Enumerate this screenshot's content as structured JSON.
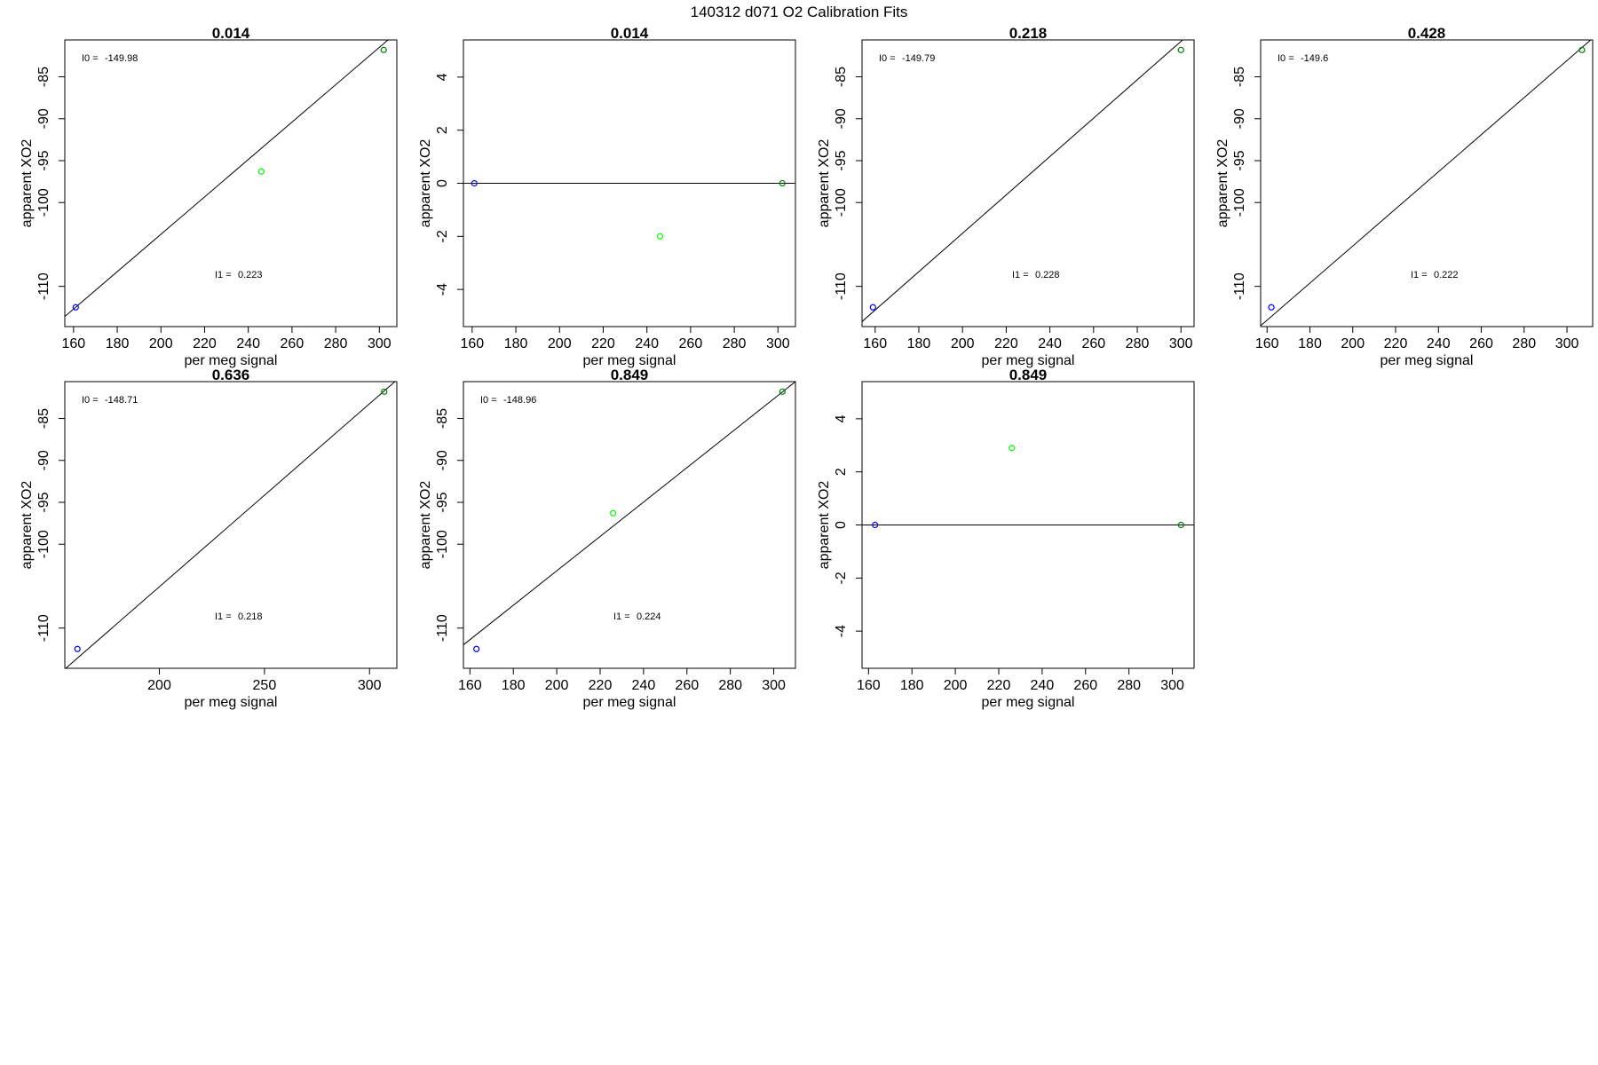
{
  "figure": {
    "title": "140312   d071   O2 Calibration Fits"
  },
  "chart_data": [
    {
      "type": "scatter",
      "title": "0.014",
      "xlabel": "per meg signal",
      "ylabel": "apparent XO2",
      "xlim": [
        156,
        308
      ],
      "ylim": [
        -114.8,
        -80.6
      ],
      "xticks": [
        "160",
        "180",
        "200",
        "220",
        "240",
        "260",
        "280",
        "300"
      ],
      "yticks": [
        "-110",
        "-100",
        "-95",
        "-90",
        "-85"
      ],
      "fit_line": [
        [
          156,
          -113.6
        ],
        [
          308,
          -79.7
        ]
      ],
      "points": [
        {
          "x": 161,
          "y": -112.5,
          "color": "#0000ff"
        },
        {
          "x": 246,
          "y": -96.3,
          "color": "#00ff00"
        },
        {
          "x": 302,
          "y": -81.8,
          "color": "#008000"
        }
      ],
      "annotations": [
        {
          "label": "I0 =",
          "value": "-149.98"
        },
        {
          "label": "I1 =",
          "value": "0.223"
        }
      ]
    },
    {
      "type": "scatter",
      "title": "0.014",
      "xlabel": "per meg signal",
      "ylabel": "apparent XO2",
      "xlim": [
        156,
        308
      ],
      "ylim": [
        -5.4,
        5.4
      ],
      "xticks": [
        "160",
        "180",
        "200",
        "220",
        "240",
        "260",
        "280",
        "300"
      ],
      "yticks": [
        "-4",
        "-2",
        "0",
        "2",
        "4"
      ],
      "fit_line": [
        [
          156,
          0
        ],
        [
          308,
          0
        ]
      ],
      "points": [
        {
          "x": 161,
          "y": 0,
          "color": "#0000ff"
        },
        {
          "x": 246,
          "y": -2,
          "color": "#00ff00"
        },
        {
          "x": 302,
          "y": 0,
          "color": "#008000"
        }
      ],
      "annotations": []
    },
    {
      "type": "scatter",
      "title": "0.218",
      "xlabel": "per meg signal",
      "ylabel": "apparent XO2",
      "xlim": [
        154,
        306
      ],
      "ylim": [
        -114.8,
        -80.6
      ],
      "xticks": [
        "160",
        "180",
        "200",
        "220",
        "240",
        "260",
        "280",
        "300"
      ],
      "yticks": [
        "-110",
        "-100",
        "-95",
        "-90",
        "-85"
      ],
      "fit_line": [
        [
          154,
          -114.2
        ],
        [
          306,
          -79.4
        ]
      ],
      "points": [
        {
          "x": 159,
          "y": -112.5,
          "color": "#0000ff"
        },
        {
          "x": 300,
          "y": -81.8,
          "color": "#008000"
        }
      ],
      "annotations": [
        {
          "label": "I0 =",
          "value": "-149.79"
        },
        {
          "label": "I1 =",
          "value": "0.228"
        }
      ]
    },
    {
      "type": "scatter",
      "title": "0.428",
      "xlabel": "per meg signal",
      "ylabel": "apparent XO2",
      "xlim": [
        157,
        312
      ],
      "ylim": [
        -114.8,
        -80.6
      ],
      "xticks": [
        "160",
        "180",
        "200",
        "220",
        "240",
        "260",
        "280",
        "300"
      ],
      "yticks": [
        "-110",
        "-100",
        "-95",
        "-90",
        "-85"
      ],
      "fit_line": [
        [
          157,
          -114.7
        ],
        [
          312,
          -80.4
        ]
      ],
      "points": [
        {
          "x": 162,
          "y": -112.5,
          "color": "#0000ff"
        },
        {
          "x": 307,
          "y": -81.8,
          "color": "#008000"
        }
      ],
      "annotations": [
        {
          "label": "I0 =",
          "value": "-149.6"
        },
        {
          "label": "I1 =",
          "value": "0.222"
        }
      ]
    },
    {
      "type": "scatter",
      "title": "0.636",
      "xlabel": "per meg signal",
      "ylabel": "apparent XO2",
      "xlim": [
        155,
        313
      ],
      "ylim": [
        -114.8,
        -80.6
      ],
      "xticks": [
        "200",
        "250",
        "300"
      ],
      "yticks": [
        "-110",
        "-100",
        "-95",
        "-90",
        "-85"
      ],
      "fit_line": [
        [
          155,
          -114.9
        ],
        [
          313,
          -80.4
        ]
      ],
      "points": [
        {
          "x": 161,
          "y": -112.5,
          "color": "#0000ff"
        },
        {
          "x": 307,
          "y": -81.8,
          "color": "#008000"
        }
      ],
      "annotations": [
        {
          "label": "I0 =",
          "value": "-148.71"
        },
        {
          "label": "I1 =",
          "value": "0.218"
        }
      ]
    },
    {
      "type": "scatter",
      "title": "0.849",
      "xlabel": "per meg signal",
      "ylabel": "apparent XO2",
      "xlim": [
        157,
        310
      ],
      "ylim": [
        -114.8,
        -80.6
      ],
      "xticks": [
        "160",
        "180",
        "200",
        "220",
        "240",
        "260",
        "280",
        "300"
      ],
      "yticks": [
        "-110",
        "-100",
        "-95",
        "-90",
        "-85"
      ],
      "fit_line": [
        [
          157,
          -112.0
        ],
        [
          310,
          -80.6
        ]
      ],
      "points": [
        {
          "x": 163,
          "y": -112.5,
          "color": "#0000ff"
        },
        {
          "x": 226,
          "y": -96.3,
          "color": "#00ff00"
        },
        {
          "x": 304,
          "y": -81.8,
          "color": "#008000"
        }
      ],
      "annotations": [
        {
          "label": "I0 =",
          "value": "-148.96"
        },
        {
          "label": "I1 =",
          "value": "0.224"
        }
      ]
    },
    {
      "type": "scatter",
      "title": "0.849",
      "xlabel": "per meg signal",
      "ylabel": "apparent XO2",
      "xlim": [
        157,
        310
      ],
      "ylim": [
        -5.4,
        5.4
      ],
      "xticks": [
        "160",
        "180",
        "200",
        "220",
        "240",
        "260",
        "280",
        "300"
      ],
      "yticks": [
        "-4",
        "-2",
        "0",
        "2",
        "4"
      ],
      "fit_line": [
        [
          157,
          0
        ],
        [
          310,
          0
        ]
      ],
      "points": [
        {
          "x": 163,
          "y": 0,
          "color": "#0000ff"
        },
        {
          "x": 226,
          "y": 2.9,
          "color": "#00ff00"
        },
        {
          "x": 304,
          "y": 0,
          "color": "#008000"
        }
      ],
      "annotations": []
    }
  ]
}
